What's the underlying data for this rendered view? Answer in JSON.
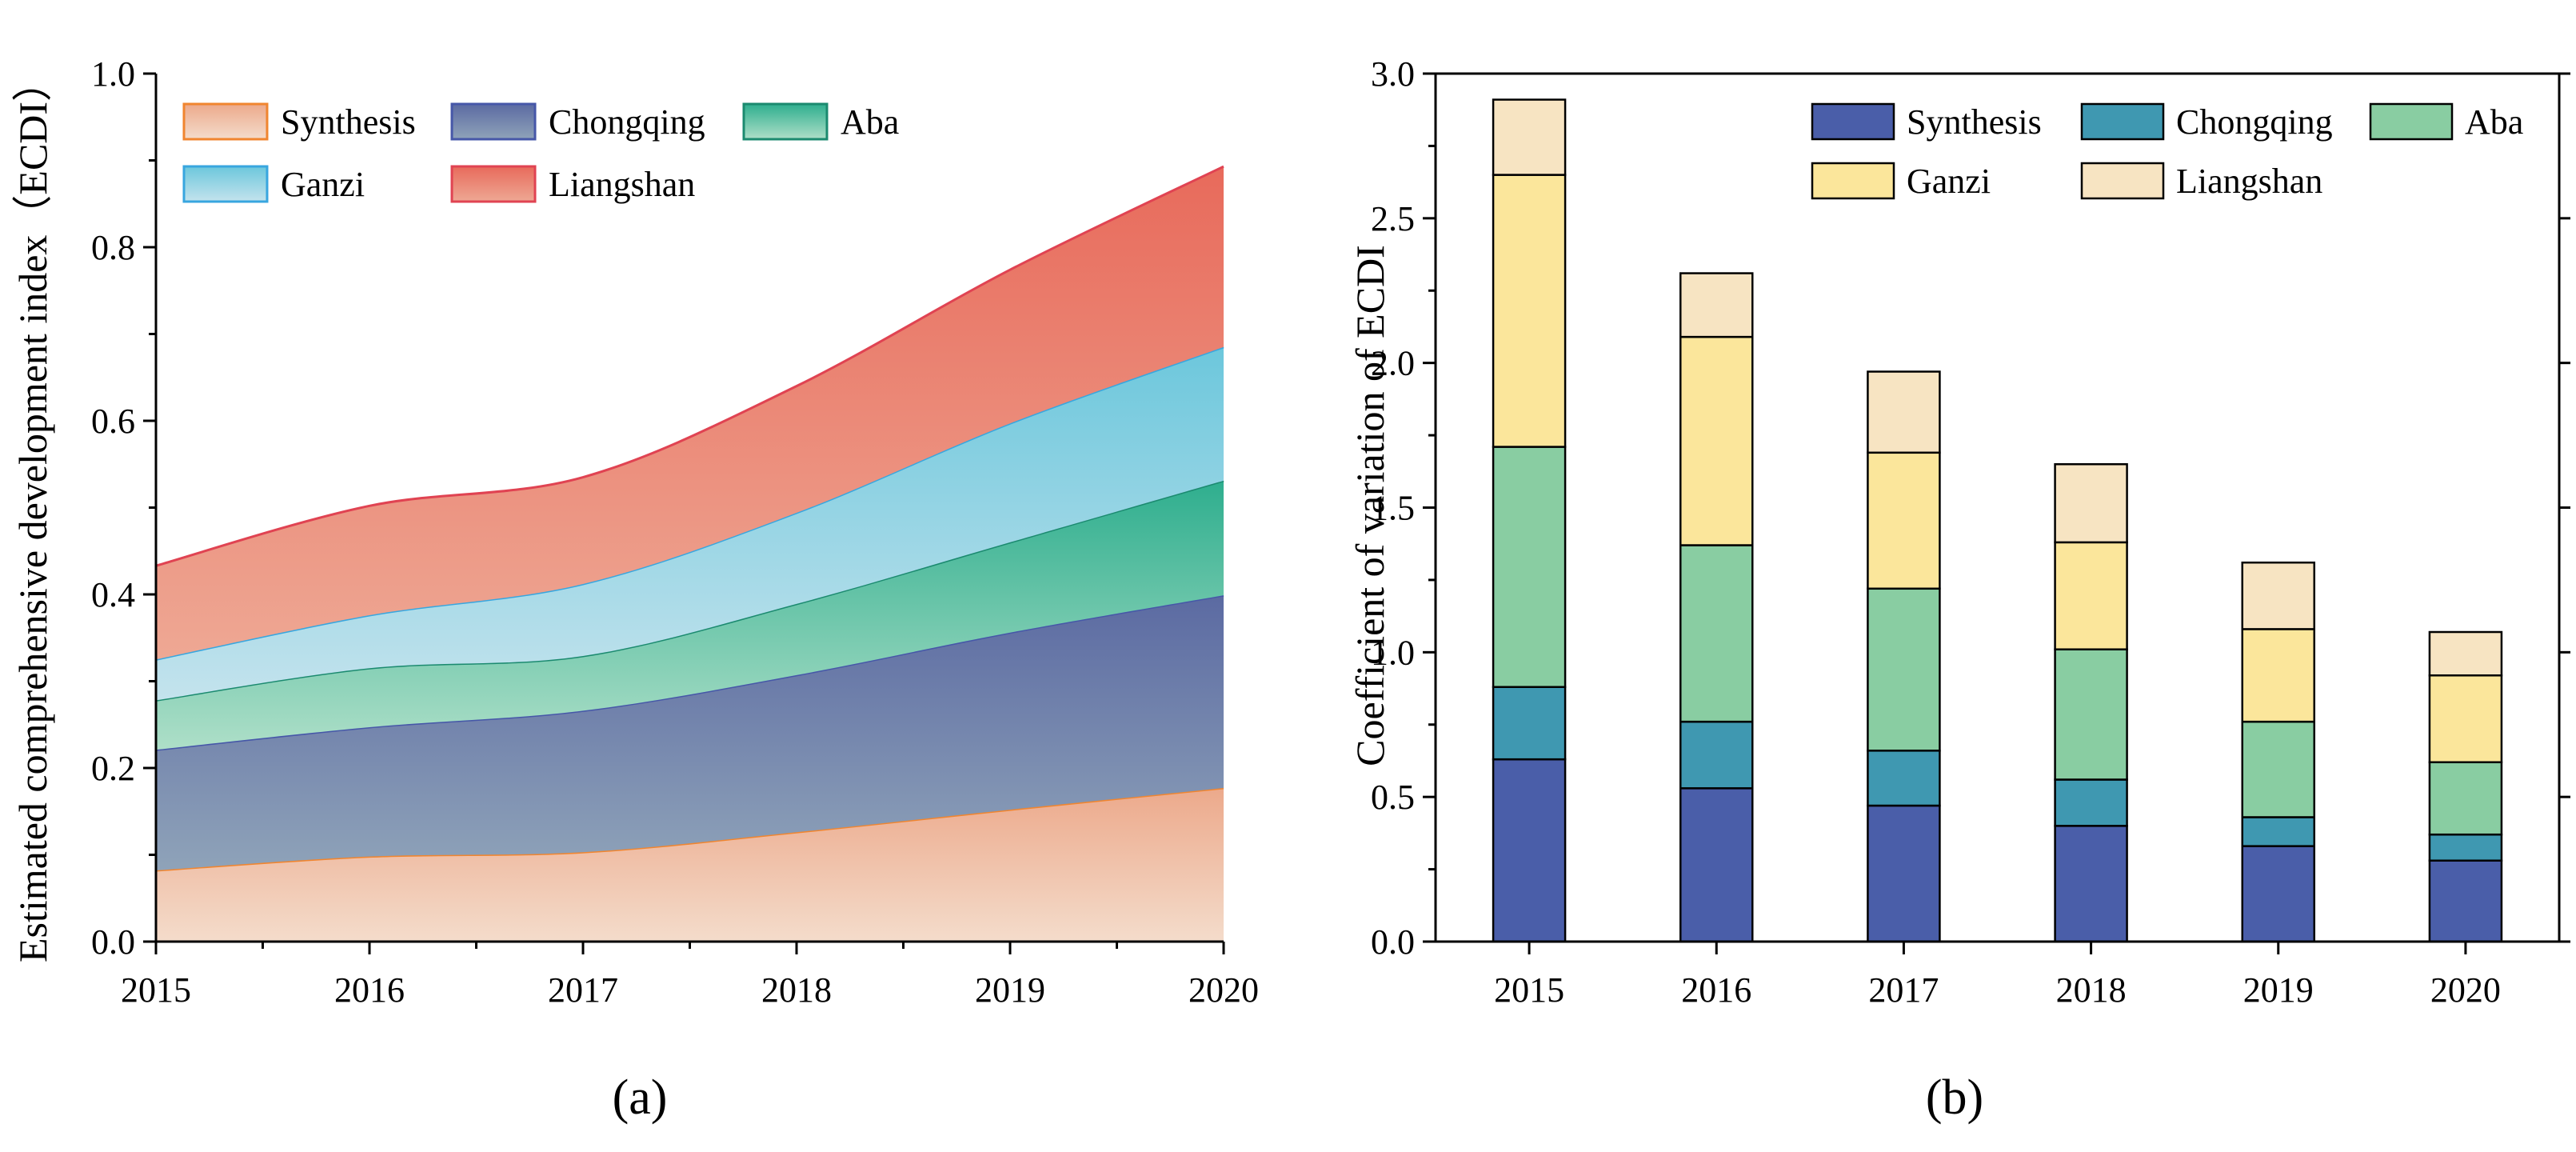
{
  "panels": {
    "a_label": "(a)",
    "b_label": "(b)"
  },
  "chart_data": [
    {
      "type": "area",
      "stacked": true,
      "title": "",
      "xlabel": "",
      "ylabel": "Estimated comprehensive development index（ECDI）",
      "categories": [
        "2015",
        "2016",
        "2017",
        "2018",
        "2019",
        "2020"
      ],
      "ylim": [
        0,
        1.0
      ],
      "yticks": [
        "0.0",
        "0.2",
        "0.4",
        "0.6",
        "0.8",
        "1.0"
      ],
      "grid": false,
      "legend_position": "top-left",
      "series": [
        {
          "name": "Synthesis",
          "values": [
            0.082,
            0.098,
            0.103,
            0.126,
            0.152,
            0.177
          ],
          "color_top": "#eca98b",
          "color_bottom": "#f4dccb",
          "line": "#f0852f"
        },
        {
          "name": "Chongqing",
          "values": [
            0.139,
            0.149,
            0.163,
            0.181,
            0.204,
            0.222
          ],
          "color_top": "#5b6aa2",
          "color_bottom": "#8fa3b9",
          "line": "#4657a8"
        },
        {
          "name": "Aba",
          "values": [
            0.057,
            0.068,
            0.063,
            0.082,
            0.104,
            0.132
          ],
          "color_top": "#2eae8e",
          "color_bottom": "#aedfc8",
          "line": "#1b8a6f"
        },
        {
          "name": "Ganzi",
          "values": [
            0.047,
            0.061,
            0.083,
            0.105,
            0.137,
            0.154
          ],
          "color_top": "#6cc7dc",
          "color_bottom": "#c4e3ed",
          "line": "#38a6df"
        },
        {
          "name": "Liangshan",
          "values": [
            0.108,
            0.126,
            0.123,
            0.146,
            0.177,
            0.208
          ],
          "color_top": "#e86a5b",
          "color_bottom": "#eea894",
          "line": "#e04352"
        }
      ]
    },
    {
      "type": "bar",
      "stacked": true,
      "title": "",
      "xlabel": "",
      "ylabel": "Coefficient of variation of ECDI",
      "categories": [
        "2015",
        "2016",
        "2017",
        "2018",
        "2019",
        "2020"
      ],
      "ylim": [
        0,
        3.0
      ],
      "yticks": [
        "0.0",
        "0.5",
        "1.0",
        "1.5",
        "2.0",
        "2.5",
        "3.0"
      ],
      "grid": false,
      "legend_position": "top-right",
      "series": [
        {
          "name": "Synthesis",
          "values": [
            0.63,
            0.53,
            0.47,
            0.4,
            0.33,
            0.28
          ],
          "color": "#4a5ea9"
        },
        {
          "name": "Chongqing",
          "values": [
            0.25,
            0.23,
            0.19,
            0.16,
            0.1,
            0.09
          ],
          "color": "#3f98b1"
        },
        {
          "name": "Aba",
          "values": [
            0.83,
            0.61,
            0.56,
            0.45,
            0.33,
            0.25
          ],
          "color": "#89cda2"
        },
        {
          "name": "Ganzi",
          "values": [
            0.94,
            0.72,
            0.47,
            0.37,
            0.32,
            0.3
          ],
          "color": "#fbe69b"
        },
        {
          "name": "Liangshan",
          "values": [
            0.26,
            0.22,
            0.28,
            0.27,
            0.23,
            0.15
          ],
          "color": "#f7e4c2"
        }
      ]
    }
  ]
}
